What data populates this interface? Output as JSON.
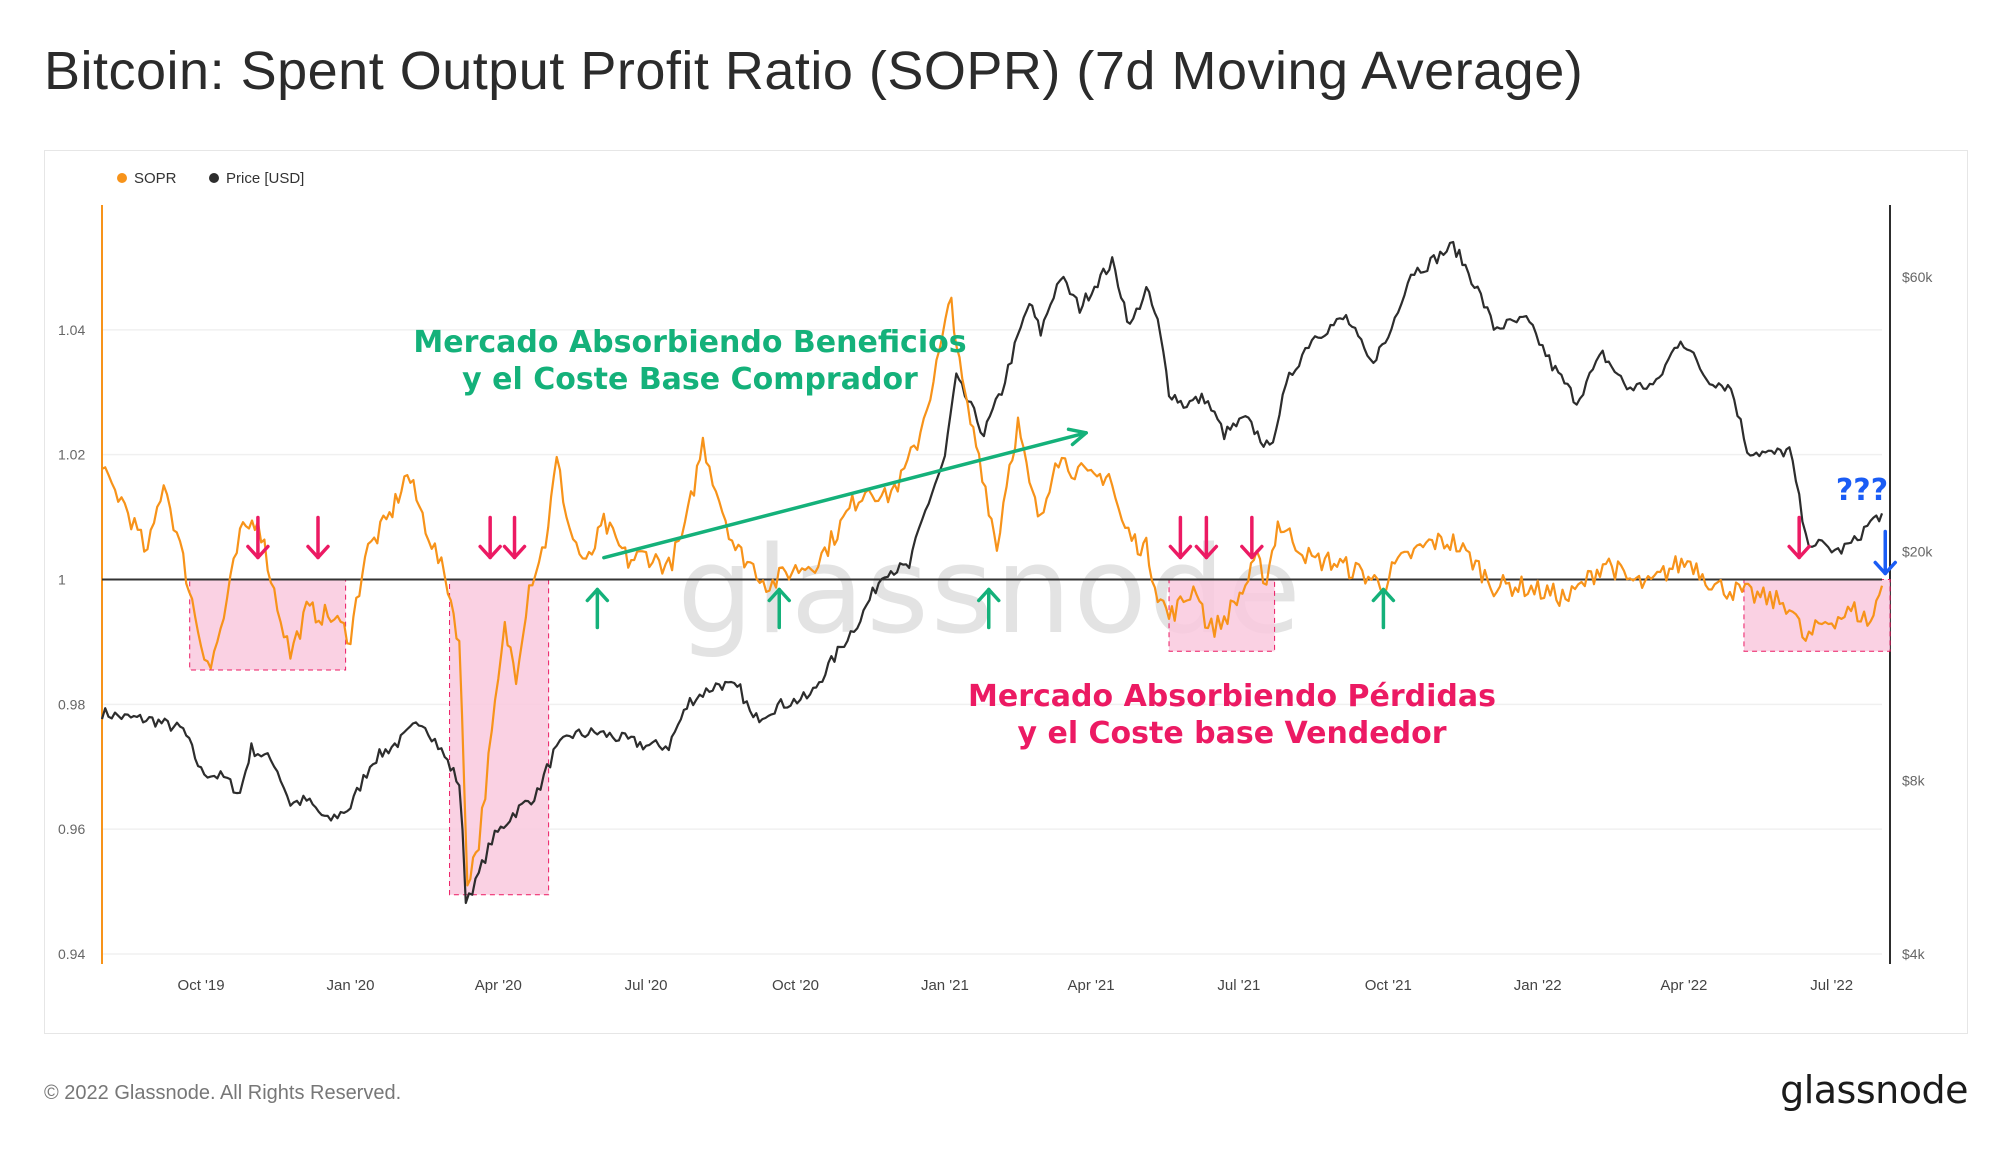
{
  "title": "Bitcoin: Spent Output Profit Ratio (SOPR) (7d Moving Average)",
  "footer": "© 2022 Glassnode. All Rights Reserved.",
  "logo": "glassnode",
  "watermark": "glassnode",
  "colors": {
    "sopr": "#f7931a",
    "price": "#2d2d2d",
    "green": "#14b17a",
    "pink": "#ec1a63",
    "blue": "#1a5cf5",
    "loss_box": "#f9c9de"
  },
  "chart_data": {
    "type": "line",
    "x_start": "2019-08-01",
    "x_end": "2022-08-01",
    "x_ticks": [
      {
        "label": "Oct '19",
        "date": "2019-10-01"
      },
      {
        "label": "Jan '20",
        "date": "2020-01-01"
      },
      {
        "label": "Apr '20",
        "date": "2020-04-01"
      },
      {
        "label": "Jul '20",
        "date": "2020-07-01"
      },
      {
        "label": "Oct '20",
        "date": "2020-10-01"
      },
      {
        "label": "Jan '21",
        "date": "2021-01-01"
      },
      {
        "label": "Apr '21",
        "date": "2021-04-01"
      },
      {
        "label": "Jul '21",
        "date": "2021-07-01"
      },
      {
        "label": "Oct '21",
        "date": "2021-10-01"
      },
      {
        "label": "Jan '22",
        "date": "2022-01-01"
      },
      {
        "label": "Apr '22",
        "date": "2022-04-01"
      },
      {
        "label": "Jul '22",
        "date": "2022-07-01"
      }
    ],
    "y_left": {
      "min": 0.94,
      "max": 1.06,
      "ticks": [
        0.94,
        0.96,
        0.98,
        1.0,
        1.02,
        1.04
      ],
      "tick_labels": [
        "0.94",
        "0.96",
        "0.98",
        "1",
        "1.02",
        "1.04"
      ],
      "reference": 1.0
    },
    "y_right": {
      "scale": "log",
      "min": 4000,
      "max": 80000,
      "ticks": [
        4000,
        8000,
        20000,
        60000
      ],
      "tick_labels": [
        "$4k",
        "$8k",
        "$20k",
        "$60k"
      ]
    },
    "legend": {
      "position": "top-left",
      "items": [
        "SOPR",
        "Price [USD]"
      ]
    },
    "series": [
      {
        "name": "SOPR",
        "axis": "left",
        "points": [
          [
            "2019-08-01",
            1.017
          ],
          [
            "2019-08-15",
            1.012
          ],
          [
            "2019-08-29",
            1.004
          ],
          [
            "2019-09-08",
            1.016
          ],
          [
            "2019-09-20",
            1.003
          ],
          [
            "2019-10-01",
            0.99
          ],
          [
            "2019-10-07",
            0.986
          ],
          [
            "2019-10-15",
            0.994
          ],
          [
            "2019-10-25",
            1.007
          ],
          [
            "2019-11-05",
            1.01
          ],
          [
            "2019-11-15",
            0.998
          ],
          [
            "2019-11-25",
            0.988
          ],
          [
            "2019-12-05",
            0.995
          ],
          [
            "2019-12-20",
            0.994
          ],
          [
            "2020-01-01",
            0.991
          ],
          [
            "2020-01-10",
            1.004
          ],
          [
            "2020-01-25",
            1.01
          ],
          [
            "2020-02-05",
            1.017
          ],
          [
            "2020-02-20",
            1.006
          ],
          [
            "2020-03-01",
            0.999
          ],
          [
            "2020-03-08",
            0.99
          ],
          [
            "2020-03-13",
            0.952
          ],
          [
            "2020-03-20",
            0.958
          ],
          [
            "2020-03-28",
            0.975
          ],
          [
            "2020-04-05",
            0.992
          ],
          [
            "2020-04-12",
            0.985
          ],
          [
            "2020-04-20",
            0.999
          ],
          [
            "2020-04-30",
            1.006
          ],
          [
            "2020-05-07",
            1.019
          ],
          [
            "2020-05-15",
            1.008
          ],
          [
            "2020-05-25",
            1.002
          ],
          [
            "2020-06-05",
            1.009
          ],
          [
            "2020-06-20",
            1.003
          ],
          [
            "2020-07-01",
            1.004
          ],
          [
            "2020-07-15",
            1.002
          ],
          [
            "2020-07-25",
            1.008
          ],
          [
            "2020-08-05",
            1.022
          ],
          [
            "2020-08-15",
            1.013
          ],
          [
            "2020-08-25",
            1.005
          ],
          [
            "2020-09-05",
            1.002
          ],
          [
            "2020-09-15",
            0.999
          ],
          [
            "2020-09-25",
            1.001
          ],
          [
            "2020-10-05",
            1.002
          ],
          [
            "2020-10-15",
            1.003
          ],
          [
            "2020-10-25",
            1.007
          ],
          [
            "2020-11-05",
            1.012
          ],
          [
            "2020-11-15",
            1.015
          ],
          [
            "2020-11-25",
            1.013
          ],
          [
            "2020-12-05",
            1.016
          ],
          [
            "2020-12-15",
            1.022
          ],
          [
            "2020-12-25",
            1.032
          ],
          [
            "2021-01-05",
            1.045
          ],
          [
            "2021-01-10",
            1.034
          ],
          [
            "2021-01-15",
            1.027
          ],
          [
            "2021-01-22",
            1.02
          ],
          [
            "2021-01-28",
            1.012
          ],
          [
            "2021-02-02",
            1.005
          ],
          [
            "2021-02-08",
            1.016
          ],
          [
            "2021-02-15",
            1.025
          ],
          [
            "2021-02-22",
            1.015
          ],
          [
            "2021-03-01",
            1.009
          ],
          [
            "2021-03-10",
            1.02
          ],
          [
            "2021-03-20",
            1.018
          ],
          [
            "2021-04-01",
            1.016
          ],
          [
            "2021-04-12",
            1.017
          ],
          [
            "2021-04-20",
            1.009
          ],
          [
            "2021-04-28",
            1.006
          ],
          [
            "2021-05-05",
            1.005
          ],
          [
            "2021-05-12",
            0.998
          ],
          [
            "2021-05-19",
            0.994
          ],
          [
            "2021-05-26",
            0.996
          ],
          [
            "2021-06-05",
            0.999
          ],
          [
            "2021-06-12",
            0.992
          ],
          [
            "2021-06-20",
            0.993
          ],
          [
            "2021-06-28",
            0.996
          ],
          [
            "2021-07-05",
            0.999
          ],
          [
            "2021-07-12",
            1.003
          ],
          [
            "2021-07-18",
            1.0
          ],
          [
            "2021-07-25",
            1.009
          ],
          [
            "2021-08-05",
            1.006
          ],
          [
            "2021-08-15",
            1.003
          ],
          [
            "2021-08-25",
            1.003
          ],
          [
            "2021-09-05",
            1.002
          ],
          [
            "2021-09-15",
            1.001
          ],
          [
            "2021-09-28",
            0.999
          ],
          [
            "2021-10-05",
            1.002
          ],
          [
            "2021-10-15",
            1.004
          ],
          [
            "2021-10-28",
            1.006
          ],
          [
            "2021-11-10",
            1.006
          ],
          [
            "2021-11-22",
            1.003
          ],
          [
            "2021-12-05",
            0.999
          ],
          [
            "2021-12-20",
            0.999
          ],
          [
            "2022-01-05",
            0.998
          ],
          [
            "2022-01-20",
            0.997
          ],
          [
            "2022-02-01",
            1.0
          ],
          [
            "2022-02-12",
            1.003
          ],
          [
            "2022-02-25",
            1.0
          ],
          [
            "2022-03-10",
            0.999
          ],
          [
            "2022-03-25",
            1.002
          ],
          [
            "2022-04-05",
            1.003
          ],
          [
            "2022-04-20",
            0.999
          ],
          [
            "2022-05-05",
            0.998
          ],
          [
            "2022-05-20",
            0.997
          ],
          [
            "2022-06-05",
            0.996
          ],
          [
            "2022-06-15",
            0.99
          ],
          [
            "2022-06-25",
            0.993
          ],
          [
            "2022-07-05",
            0.994
          ],
          [
            "2022-07-15",
            0.995
          ],
          [
            "2022-07-25",
            0.993
          ],
          [
            "2022-08-01",
            0.999
          ]
        ]
      },
      {
        "name": "Price [USD]",
        "axis": "right",
        "points": [
          [
            "2019-08-01",
            10500
          ],
          [
            "2019-08-15",
            10300
          ],
          [
            "2019-09-01",
            10200
          ],
          [
            "2019-09-20",
            9800
          ],
          [
            "2019-10-01",
            8300
          ],
          [
            "2019-10-15",
            8100
          ],
          [
            "2019-10-25",
            7600
          ],
          [
            "2019-11-01",
            9100
          ],
          [
            "2019-11-15",
            8600
          ],
          [
            "2019-11-25",
            7300
          ],
          [
            "2019-12-05",
            7400
          ],
          [
            "2019-12-18",
            6800
          ],
          [
            "2020-01-01",
            7200
          ],
          [
            "2020-01-15",
            8700
          ],
          [
            "2020-02-01",
            9400
          ],
          [
            "2020-02-14",
            10200
          ],
          [
            "2020-02-28",
            8800
          ],
          [
            "2020-03-08",
            7900
          ],
          [
            "2020-03-12",
            5000
          ],
          [
            "2020-03-18",
            5300
          ],
          [
            "2020-03-28",
            6300
          ],
          [
            "2020-04-10",
            7000
          ],
          [
            "2020-04-25",
            7600
          ],
          [
            "2020-05-05",
            8900
          ],
          [
            "2020-05-15",
            9600
          ],
          [
            "2020-06-01",
            9700
          ],
          [
            "2020-06-20",
            9400
          ],
          [
            "2020-07-01",
            9200
          ],
          [
            "2020-07-15",
            9200
          ],
          [
            "2020-07-28",
            11000
          ],
          [
            "2020-08-15",
            11800
          ],
          [
            "2020-08-28",
            11500
          ],
          [
            "2020-09-05",
            10200
          ],
          [
            "2020-09-20",
            10800
          ],
          [
            "2020-10-10",
            11200
          ],
          [
            "2020-10-25",
            13100
          ],
          [
            "2020-11-10",
            15300
          ],
          [
            "2020-11-25",
            18500
          ],
          [
            "2020-12-10",
            18800
          ],
          [
            "2020-12-20",
            23500
          ],
          [
            "2021-01-01",
            29000
          ],
          [
            "2021-01-08",
            40000
          ],
          [
            "2021-01-15",
            36500
          ],
          [
            "2021-01-25",
            32000
          ],
          [
            "2021-02-05",
            38000
          ],
          [
            "2021-02-15",
            47000
          ],
          [
            "2021-02-22",
            54000
          ],
          [
            "2021-03-01",
            48000
          ],
          [
            "2021-03-13",
            60000
          ],
          [
            "2021-03-25",
            53000
          ],
          [
            "2021-04-05",
            59000
          ],
          [
            "2021-04-14",
            63500
          ],
          [
            "2021-04-25",
            49000
          ],
          [
            "2021-05-05",
            57000
          ],
          [
            "2021-05-12",
            50000
          ],
          [
            "2021-05-19",
            38000
          ],
          [
            "2021-05-28",
            36000
          ],
          [
            "2021-06-10",
            37000
          ],
          [
            "2021-06-22",
            32000
          ],
          [
            "2021-07-05",
            34000
          ],
          [
            "2021-07-20",
            30000
          ],
          [
            "2021-08-01",
            40000
          ],
          [
            "2021-08-15",
            47000
          ],
          [
            "2021-09-05",
            51000
          ],
          [
            "2021-09-20",
            42500
          ],
          [
            "2021-10-01",
            47000
          ],
          [
            "2021-10-15",
            61000
          ],
          [
            "2021-10-25",
            63000
          ],
          [
            "2021-11-10",
            68000
          ],
          [
            "2021-11-25",
            57000
          ],
          [
            "2021-12-05",
            49000
          ],
          [
            "2021-12-25",
            50500
          ],
          [
            "2022-01-10",
            42000
          ],
          [
            "2022-01-25",
            36500
          ],
          [
            "2022-02-10",
            44000
          ],
          [
            "2022-02-25",
            38500
          ],
          [
            "2022-03-15",
            39000
          ],
          [
            "2022-03-30",
            47000
          ],
          [
            "2022-04-15",
            40000
          ],
          [
            "2022-04-30",
            38500
          ],
          [
            "2022-05-10",
            30000
          ],
          [
            "2022-05-25",
            29500
          ],
          [
            "2022-06-05",
            30000
          ],
          [
            "2022-06-15",
            21000
          ],
          [
            "2022-06-25",
            20500
          ],
          [
            "2022-07-05",
            20000
          ],
          [
            "2022-07-15",
            20800
          ],
          [
            "2022-07-25",
            22500
          ],
          [
            "2022-08-01",
            23300
          ]
        ]
      }
    ],
    "annotations": {
      "profit_label_lines": [
        "Mercado Absorbiendo Beneficios",
        "y el Coste Base Comprador"
      ],
      "loss_label_lines": [
        "Mercado Absorbiendo Pérdidas",
        "y el Coste base Vendedor"
      ],
      "question": "???",
      "trend_arrow": {
        "from": [
          "2020-06-05",
          1.0035
        ],
        "to": [
          "2021-03-29",
          1.0235
        ]
      },
      "loss_boxes": [
        {
          "from": "2019-09-24",
          "to": "2019-12-29",
          "ymin": 0.9855,
          "ymax": 1.0
        },
        {
          "from": "2020-03-02",
          "to": "2020-05-02",
          "ymin": 0.9495,
          "ymax": 1.0
        },
        {
          "from": "2021-05-19",
          "to": "2021-07-23",
          "ymin": 0.9885,
          "ymax": 1.0
        },
        {
          "from": "2022-05-08",
          "to": "2022-08-06",
          "ymin": 0.9885,
          "ymax": 1.0
        }
      ],
      "down_arrows": [
        "2019-11-05",
        "2019-12-12",
        "2020-03-27",
        "2020-04-11",
        "2021-05-26",
        "2021-06-11",
        "2021-07-09",
        "2022-06-11"
      ],
      "up_arrows": [
        "2020-06-01",
        "2020-09-21",
        "2021-01-28",
        "2021-09-28"
      ],
      "blue_arrow": "2022-08-03"
    }
  }
}
